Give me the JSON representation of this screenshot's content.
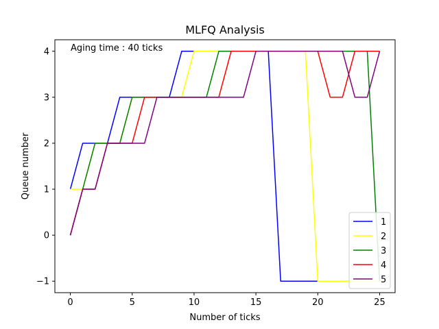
{
  "chart_data": {
    "type": "line",
    "title": "MLFQ Analysis",
    "xlabel": "Number of ticks",
    "ylabel": "Queue number",
    "annotation": "Aging time : 40 ticks",
    "xlim": [
      -1.25,
      26.25
    ],
    "ylim": [
      -1.25,
      4.25
    ],
    "xticks": [
      0,
      5,
      10,
      15,
      20,
      25
    ],
    "yticks": [
      -1,
      0,
      1,
      2,
      3,
      4
    ],
    "ytick_labels": [
      "−1",
      "0",
      "1",
      "2",
      "3",
      "4"
    ],
    "grid": false,
    "legend_position": "lower right",
    "series": [
      {
        "name": "1",
        "color": "#0000ff",
        "x": [
          0,
          1,
          2,
          3,
          4,
          5,
          6,
          7,
          8,
          9,
          10,
          11,
          12,
          13,
          14,
          15,
          16,
          17,
          18,
          19,
          20,
          21,
          22,
          23,
          24,
          25
        ],
        "y": [
          1,
          2,
          2,
          2,
          3,
          3,
          3,
          3,
          3,
          4,
          4,
          4,
          4,
          4,
          4,
          4,
          4,
          -1,
          -1,
          -1,
          -1,
          -1,
          -1,
          -1,
          -1,
          -1
        ]
      },
      {
        "name": "2",
        "color": "#ffff00",
        "x": [
          0,
          1,
          2,
          3,
          4,
          5,
          6,
          7,
          8,
          9,
          10,
          11,
          12,
          13,
          14,
          15,
          16,
          17,
          18,
          19,
          20,
          21,
          22,
          23,
          24,
          25
        ],
        "y": [
          1,
          1,
          2,
          2,
          2,
          3,
          3,
          3,
          3,
          3,
          4,
          4,
          4,
          4,
          4,
          4,
          4,
          4,
          4,
          4,
          -1,
          -1,
          -1,
          -1,
          -1,
          -1
        ]
      },
      {
        "name": "3",
        "color": "#008000",
        "x": [
          0,
          1,
          2,
          3,
          4,
          5,
          6,
          7,
          8,
          9,
          10,
          11,
          12,
          13,
          14,
          15,
          16,
          17,
          18,
          19,
          20,
          21,
          22,
          23,
          24,
          25
        ],
        "y": [
          0,
          1,
          2,
          2,
          2,
          3,
          3,
          3,
          3,
          3,
          3,
          3,
          4,
          4,
          4,
          4,
          4,
          4,
          4,
          4,
          4,
          4,
          4,
          4,
          4,
          -1
        ]
      },
      {
        "name": "4",
        "color": "#ff0000",
        "x": [
          0,
          1,
          2,
          3,
          4,
          5,
          6,
          7,
          8,
          9,
          10,
          11,
          12,
          13,
          14,
          15,
          16,
          17,
          18,
          19,
          20,
          21,
          22,
          23,
          24,
          25
        ],
        "y": [
          0,
          1,
          1,
          2,
          2,
          2,
          3,
          3,
          3,
          3,
          3,
          3,
          3,
          4,
          4,
          4,
          4,
          4,
          4,
          4,
          4,
          3,
          3,
          4,
          4,
          4
        ]
      },
      {
        "name": "5",
        "color": "#800080",
        "x": [
          0,
          1,
          2,
          3,
          4,
          5,
          6,
          7,
          8,
          9,
          10,
          11,
          12,
          13,
          14,
          15,
          16,
          17,
          18,
          19,
          20,
          21,
          22,
          23,
          24,
          25
        ],
        "y": [
          0,
          1,
          1,
          2,
          2,
          2,
          2,
          3,
          3,
          3,
          3,
          3,
          3,
          3,
          3,
          4,
          4,
          4,
          4,
          4,
          4,
          4,
          4,
          3,
          3,
          4
        ]
      }
    ]
  }
}
